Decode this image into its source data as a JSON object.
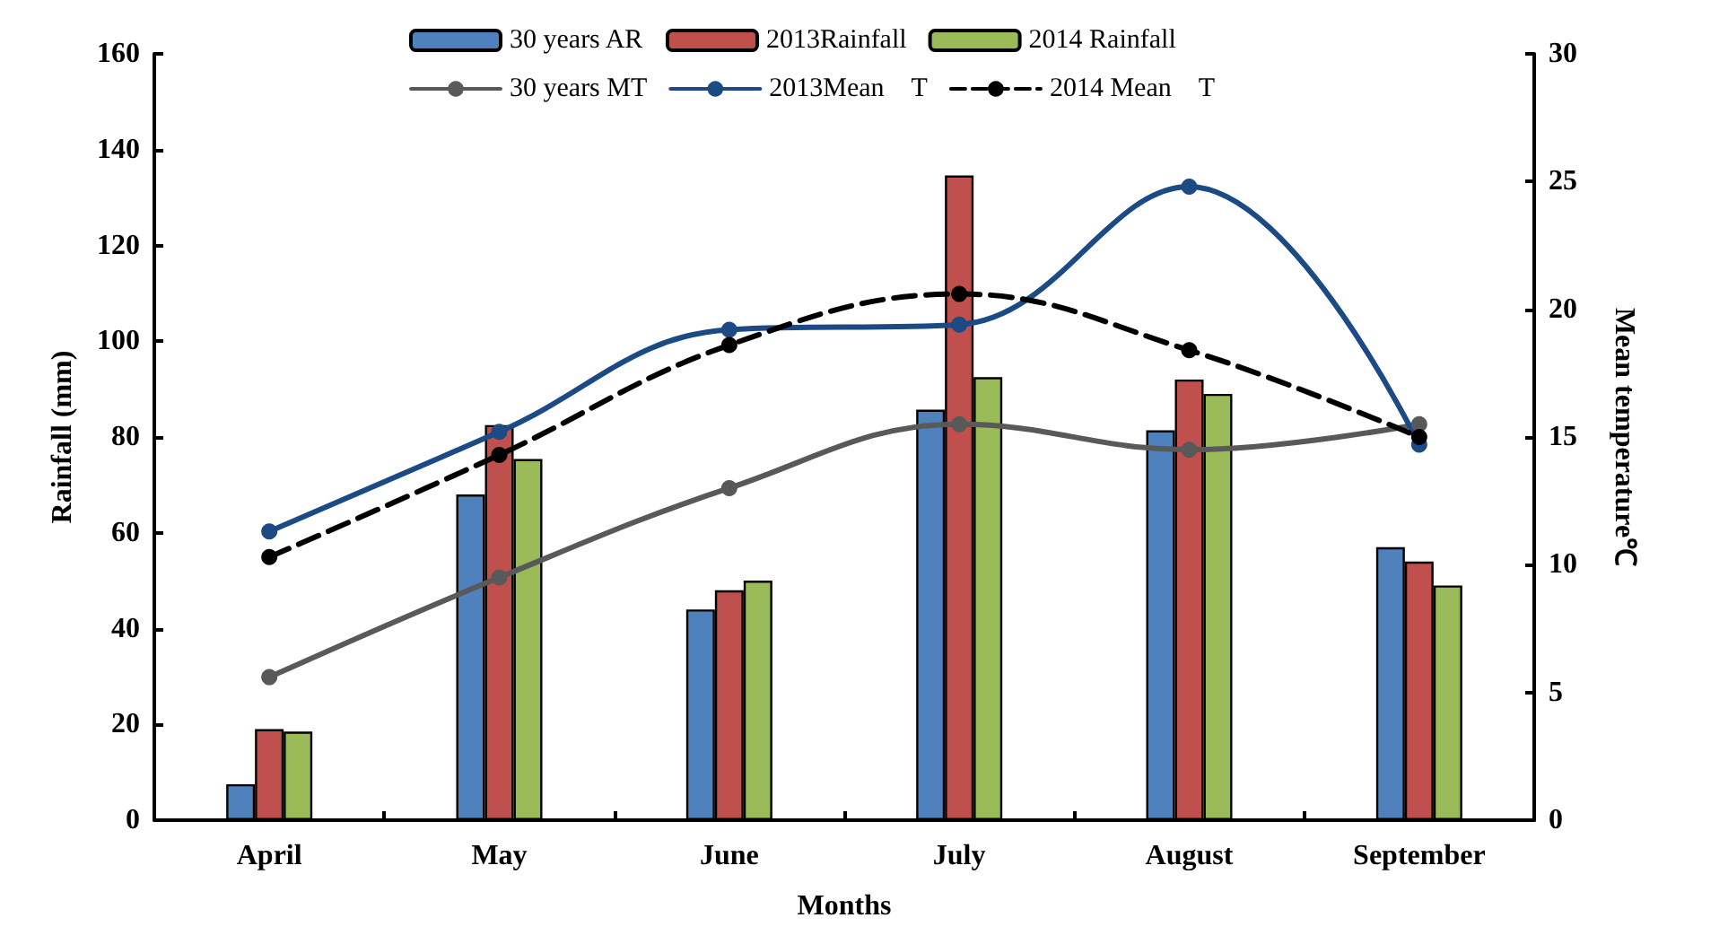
{
  "chart_data": {
    "type": "bar",
    "xlabel": "Months",
    "ylabel": "Rainfall (mm)",
    "y2label": "Mean temperature℃",
    "categories": [
      "April",
      "May",
      "June",
      "July",
      "August",
      "September"
    ],
    "series": [
      {
        "name": "30 years AR",
        "color": "#4f81bd",
        "values": [
          7.5,
          68,
          44,
          85.7,
          81.4,
          57
        ]
      },
      {
        "name": "2013Rainfall",
        "color": "#c0504d",
        "values": [
          19,
          82.5,
          48,
          134.6,
          92,
          54
        ]
      },
      {
        "name": "2014 Rainfall",
        "color": "#9bbb59",
        "values": [
          18.5,
          75.4,
          50,
          92.5,
          89,
          49
        ]
      },
      {
        "name": "30 years MT",
        "type": "line",
        "axis": "y2",
        "color": "#595959",
        "marker": "circle",
        "line_style": "solid",
        "values": [
          5.6,
          9.5,
          13.0,
          15.5,
          14.5,
          15.5
        ]
      },
      {
        "name": "2013Mean　T",
        "type": "line",
        "axis": "y2",
        "color": "#1b4a85",
        "marker": "circle",
        "line_style": "solid",
        "values": [
          11.3,
          15.2,
          19.2,
          19.4,
          24.8,
          14.7
        ]
      },
      {
        "name": "2014 Mean　T",
        "type": "line",
        "axis": "y2",
        "color": "#000000",
        "marker": "circle",
        "line_style": "dashed",
        "values": [
          10.3,
          14.3,
          18.6,
          20.6,
          18.4,
          15.0
        ]
      }
    ],
    "ylim": [
      0,
      160
    ],
    "yticks": [
      0,
      20,
      40,
      60,
      80,
      100,
      120,
      140,
      160
    ],
    "y2lim": [
      0,
      30
    ],
    "y2ticks": [
      0,
      5,
      10,
      15,
      20,
      25,
      30
    ],
    "grid": false,
    "legend": "top"
  }
}
